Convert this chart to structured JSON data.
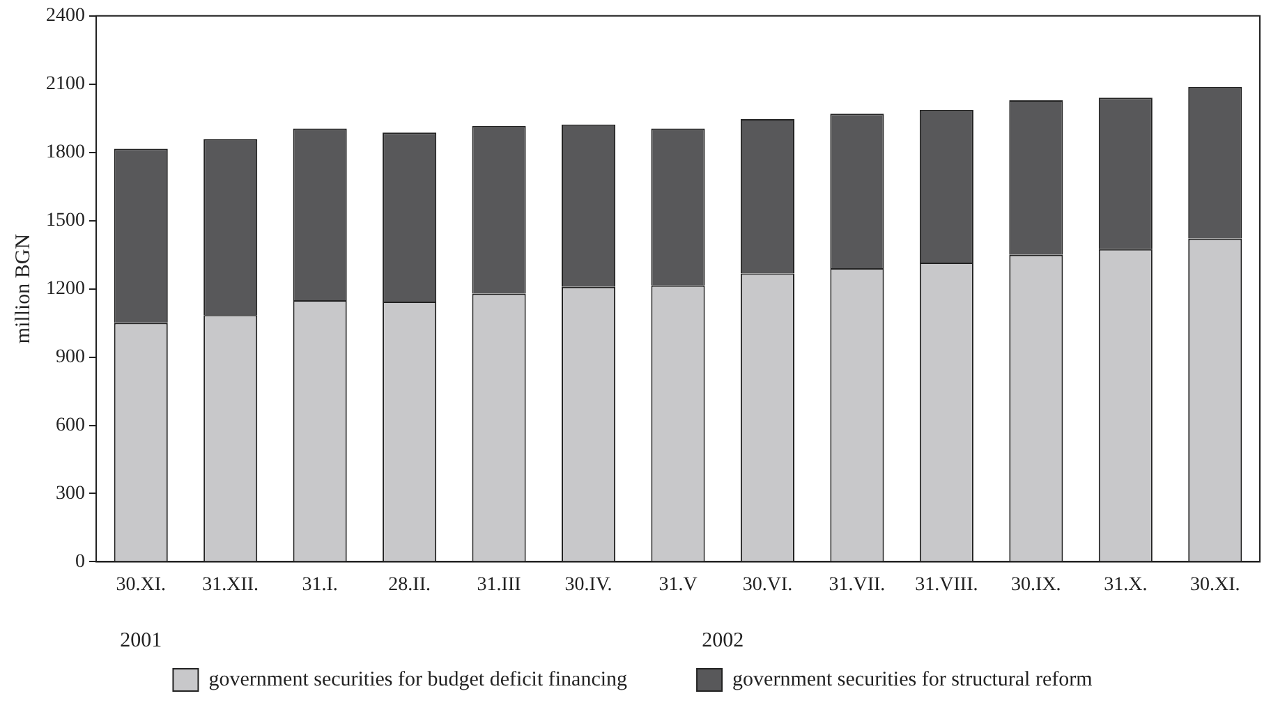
{
  "chart_data": {
    "type": "bar",
    "stacked": true,
    "ylabel": "million BGN",
    "categories": [
      "30.XI.",
      "31.XII.",
      "31.I.",
      "28.II.",
      "31.III",
      "30.IV.",
      "31.V",
      "30.VI.",
      "31.VII.",
      "31.VIII.",
      "30.IX.",
      "31.X.",
      "30.XI."
    ],
    "series": [
      {
        "name": "government securities for budget deficit financing",
        "color": "#c8c8ca",
        "values": [
          1050,
          1085,
          1150,
          1144,
          1179,
          1209,
          1215,
          1268,
          1291,
          1315,
          1350,
          1374,
          1421
        ]
      },
      {
        "name": "government securities for structural reform",
        "color": "#58585a",
        "values": [
          766,
          773,
          755,
          743,
          737,
          713,
          690,
          678,
          679,
          672,
          679,
          666,
          667
        ]
      }
    ],
    "ylim": [
      0,
      2400
    ],
    "yticks": [
      0,
      300,
      600,
      900,
      1200,
      1500,
      1800,
      2100,
      2400
    ],
    "grid": false,
    "legend": "bottom",
    "annotations": [
      "2001",
      "2002"
    ]
  }
}
